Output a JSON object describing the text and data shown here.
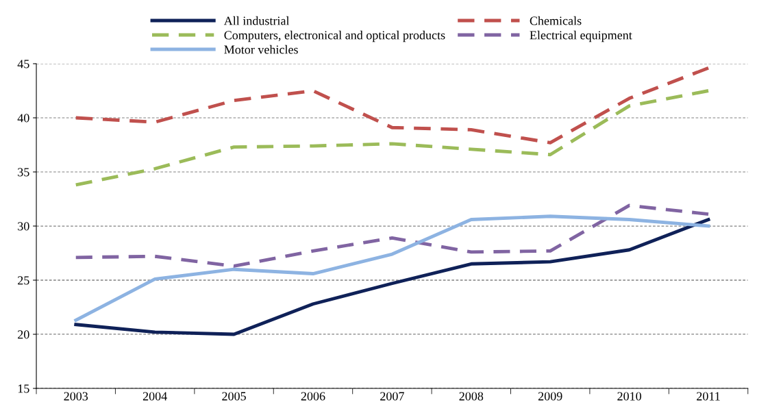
{
  "chart_data": {
    "type": "line",
    "categories": [
      "2003",
      "2004",
      "2005",
      "2006",
      "2007",
      "2008",
      "2009",
      "2010",
      "2011"
    ],
    "series": [
      {
        "name": "All industrial",
        "color": "#0f2158",
        "line_style": "solid",
        "values": [
          20.9,
          20.2,
          20.0,
          22.8,
          24.7,
          26.5,
          26.7,
          27.8,
          30.6
        ]
      },
      {
        "name": "Chemicals",
        "color": "#c0504d",
        "line_style": "dashed",
        "values": [
          40.0,
          39.6,
          41.6,
          42.5,
          39.1,
          38.9,
          37.7,
          41.8,
          44.6
        ]
      },
      {
        "name": "Computers, electronical and optical products",
        "color": "#9bbb59",
        "line_style": "dashed",
        "values": [
          33.8,
          35.3,
          37.3,
          37.4,
          37.6,
          37.1,
          36.6,
          41.1,
          42.5
        ]
      },
      {
        "name": "Electrical equipment",
        "color": "#8064a2",
        "line_style": "dashed",
        "values": [
          27.1,
          27.2,
          26.3,
          27.7,
          28.9,
          27.6,
          27.7,
          31.9,
          31.1
        ]
      },
      {
        "name": "Motor vehicles",
        "color": "#8db3e2",
        "line_style": "solid",
        "values": [
          21.3,
          25.1,
          26.0,
          25.6,
          27.4,
          30.6,
          30.9,
          30.6,
          30.0
        ]
      }
    ],
    "ylim": [
      15,
      45
    ],
    "yticks": [
      15,
      20,
      25,
      30,
      35,
      40,
      45
    ],
    "grid": "y",
    "legend": "top",
    "marker": "none"
  }
}
